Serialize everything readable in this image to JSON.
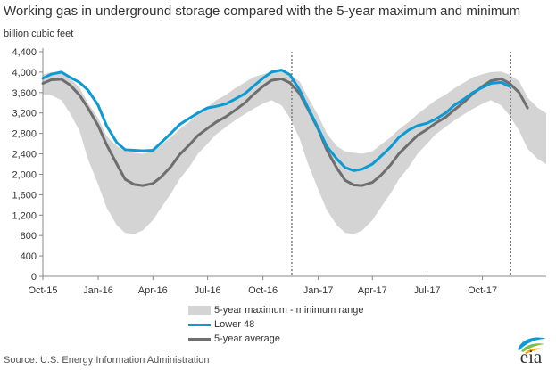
{
  "title": "Working gas in underground  storage compared with the 5-year maximum and minimum",
  "units": "billion cubic feet",
  "source": "Source:  U.S. Energy Information Administration",
  "logo_text": "eia",
  "legend": {
    "band": "5-year maximum - minimum range",
    "lower48": "Lower 48",
    "avg": "5-year average"
  },
  "colors": {
    "band": "#d4d4d4",
    "lower48": "#0b9ad3",
    "avg": "#6e6e6e",
    "axis": "#888888",
    "text": "#333333"
  },
  "chart_data": {
    "type": "area",
    "title": "Working gas in underground  storage compared with the 5-year maximum and minimum",
    "ylabel": "billion cubic feet",
    "ylim": [
      0,
      4400
    ],
    "yticks": [
      0,
      400,
      800,
      1200,
      1600,
      2000,
      2400,
      2800,
      3200,
      3600,
      4000,
      4400
    ],
    "ytick_labels": [
      "0",
      "400",
      "800",
      "1,200",
      "1,600",
      "2,000",
      "2,400",
      "2,800",
      "3,200",
      "3,600",
      "4,000",
      "4,400"
    ],
    "xlim": [
      "2015-10-01",
      "2018-01-15"
    ],
    "xticks": [
      "2015-10-01",
      "2016-01-01",
      "2016-04-01",
      "2016-07-01",
      "2016-10-01",
      "2017-01-01",
      "2017-04-01",
      "2017-07-01",
      "2017-10-01"
    ],
    "xtick_labels": [
      "Oct-15",
      "Jan-16",
      "Apr-16",
      "Jul-16",
      "Oct-16",
      "Jan-17",
      "Apr-17",
      "Jul-17",
      "Oct-17"
    ],
    "grid": false,
    "legend_position": "bottom-center",
    "vlines": [
      "2016-11-18",
      "2017-11-17"
    ],
    "series": [
      {
        "name": "5-year maximum - minimum range",
        "kind": "band",
        "dates": [
          "2015-10-01",
          "2015-10-15",
          "2015-11-01",
          "2015-11-15",
          "2015-12-01",
          "2015-12-15",
          "2016-01-01",
          "2016-01-15",
          "2016-02-01",
          "2016-02-15",
          "2016-03-01",
          "2016-03-15",
          "2016-04-01",
          "2016-04-15",
          "2016-05-01",
          "2016-05-15",
          "2016-06-01",
          "2016-06-15",
          "2016-07-01",
          "2016-07-15",
          "2016-08-01",
          "2016-08-15",
          "2016-09-01",
          "2016-09-15",
          "2016-10-01",
          "2016-10-15",
          "2016-11-01",
          "2016-11-15",
          "2016-12-01",
          "2016-12-15",
          "2017-01-01",
          "2017-01-15",
          "2017-02-01",
          "2017-02-15",
          "2017-03-01",
          "2017-03-15",
          "2017-04-01",
          "2017-04-15",
          "2017-05-01",
          "2017-05-15",
          "2017-06-01",
          "2017-06-15",
          "2017-07-01",
          "2017-07-15",
          "2017-08-01",
          "2017-08-15",
          "2017-09-01",
          "2017-09-15",
          "2017-10-01",
          "2017-10-15",
          "2017-11-01",
          "2017-11-15",
          "2017-12-01",
          "2017-12-15",
          "2018-01-01",
          "2018-01-15"
        ],
        "max": [
          3950,
          4000,
          3980,
          3880,
          3700,
          3400,
          3100,
          2750,
          2550,
          2450,
          2420,
          2400,
          2450,
          2580,
          2720,
          2880,
          3030,
          3180,
          3320,
          3450,
          3560,
          3680,
          3800,
          3900,
          3960,
          4000,
          4010,
          3950,
          3820,
          3500,
          3150,
          2800,
          2550,
          2450,
          2420,
          2400,
          2450,
          2580,
          2720,
          2880,
          3030,
          3180,
          3320,
          3450,
          3560,
          3680,
          3800,
          3900,
          3960,
          4000,
          4010,
          3950,
          3820,
          3500,
          3300,
          3200
        ],
        "min": [
          3550,
          3550,
          3450,
          3200,
          2850,
          2300,
          1800,
          1350,
          1000,
          850,
          830,
          900,
          1100,
          1350,
          1620,
          1900,
          2150,
          2400,
          2600,
          2780,
          2930,
          3050,
          3180,
          3280,
          3380,
          3450,
          3350,
          3100,
          2700,
          2200,
          1700,
          1300,
          1000,
          850,
          830,
          900,
          1100,
          1350,
          1620,
          1900,
          2150,
          2400,
          2600,
          2780,
          2930,
          3050,
          3180,
          3280,
          3380,
          3450,
          3350,
          3150,
          2850,
          2500,
          2300,
          2200
        ]
      },
      {
        "name": "Lower 48",
        "kind": "line",
        "dates": [
          "2015-10-01",
          "2015-10-15",
          "2015-11-01",
          "2015-11-15",
          "2015-12-01",
          "2015-12-15",
          "2016-01-01",
          "2016-01-15",
          "2016-02-01",
          "2016-02-15",
          "2016-03-01",
          "2016-03-15",
          "2016-04-01",
          "2016-04-15",
          "2016-05-01",
          "2016-05-15",
          "2016-06-01",
          "2016-06-15",
          "2016-07-01",
          "2016-07-15",
          "2016-08-01",
          "2016-08-15",
          "2016-09-01",
          "2016-09-15",
          "2016-10-01",
          "2016-10-15",
          "2016-11-01",
          "2016-11-15",
          "2016-12-01",
          "2016-12-15",
          "2017-01-01",
          "2017-01-15",
          "2017-02-01",
          "2017-02-15",
          "2017-03-01",
          "2017-03-15",
          "2017-04-01",
          "2017-04-15",
          "2017-05-01",
          "2017-05-15",
          "2017-06-01",
          "2017-06-15",
          "2017-07-01",
          "2017-07-15",
          "2017-08-01",
          "2017-08-15",
          "2017-09-01",
          "2017-09-15",
          "2017-10-01",
          "2017-10-15",
          "2017-11-01",
          "2017-11-15"
        ],
        "values": [
          3880,
          3960,
          4000,
          3900,
          3800,
          3650,
          3350,
          2950,
          2620,
          2480,
          2470,
          2460,
          2470,
          2620,
          2800,
          2970,
          3100,
          3200,
          3300,
          3330,
          3380,
          3470,
          3580,
          3720,
          3880,
          4000,
          4040,
          3950,
          3650,
          3300,
          2900,
          2550,
          2300,
          2130,
          2070,
          2100,
          2200,
          2350,
          2530,
          2720,
          2870,
          2950,
          3000,
          3080,
          3200,
          3350,
          3480,
          3600,
          3700,
          3780,
          3800,
          3720
        ]
      },
      {
        "name": "5-year average",
        "kind": "line",
        "dates": [
          "2015-10-01",
          "2015-10-15",
          "2015-11-01",
          "2015-11-15",
          "2015-12-01",
          "2015-12-15",
          "2016-01-01",
          "2016-01-15",
          "2016-02-01",
          "2016-02-15",
          "2016-03-01",
          "2016-03-15",
          "2016-04-01",
          "2016-04-15",
          "2016-05-01",
          "2016-05-15",
          "2016-06-01",
          "2016-06-15",
          "2016-07-01",
          "2016-07-15",
          "2016-08-01",
          "2016-08-15",
          "2016-09-01",
          "2016-09-15",
          "2016-10-01",
          "2016-10-15",
          "2016-11-01",
          "2016-11-15",
          "2016-12-01",
          "2016-12-15",
          "2017-01-01",
          "2017-01-15",
          "2017-02-01",
          "2017-02-15",
          "2017-03-01",
          "2017-03-15",
          "2017-04-01",
          "2017-04-15",
          "2017-05-01",
          "2017-05-15",
          "2017-06-01",
          "2017-06-15",
          "2017-07-01",
          "2017-07-15",
          "2017-08-01",
          "2017-08-15",
          "2017-09-01",
          "2017-09-15",
          "2017-10-01",
          "2017-10-15",
          "2017-11-01",
          "2017-11-15",
          "2017-12-01",
          "2017-12-15"
        ],
        "values": [
          3780,
          3850,
          3860,
          3750,
          3550,
          3300,
          2950,
          2580,
          2200,
          1900,
          1800,
          1780,
          1820,
          1950,
          2150,
          2380,
          2580,
          2760,
          2900,
          3020,
          3130,
          3250,
          3400,
          3560,
          3720,
          3840,
          3870,
          3790,
          3580,
          3270,
          2880,
          2480,
          2120,
          1880,
          1790,
          1780,
          1840,
          1980,
          2180,
          2400,
          2600,
          2760,
          2880,
          3000,
          3120,
          3260,
          3420,
          3580,
          3720,
          3830,
          3870,
          3780,
          3600,
          3300
        ]
      }
    ]
  }
}
